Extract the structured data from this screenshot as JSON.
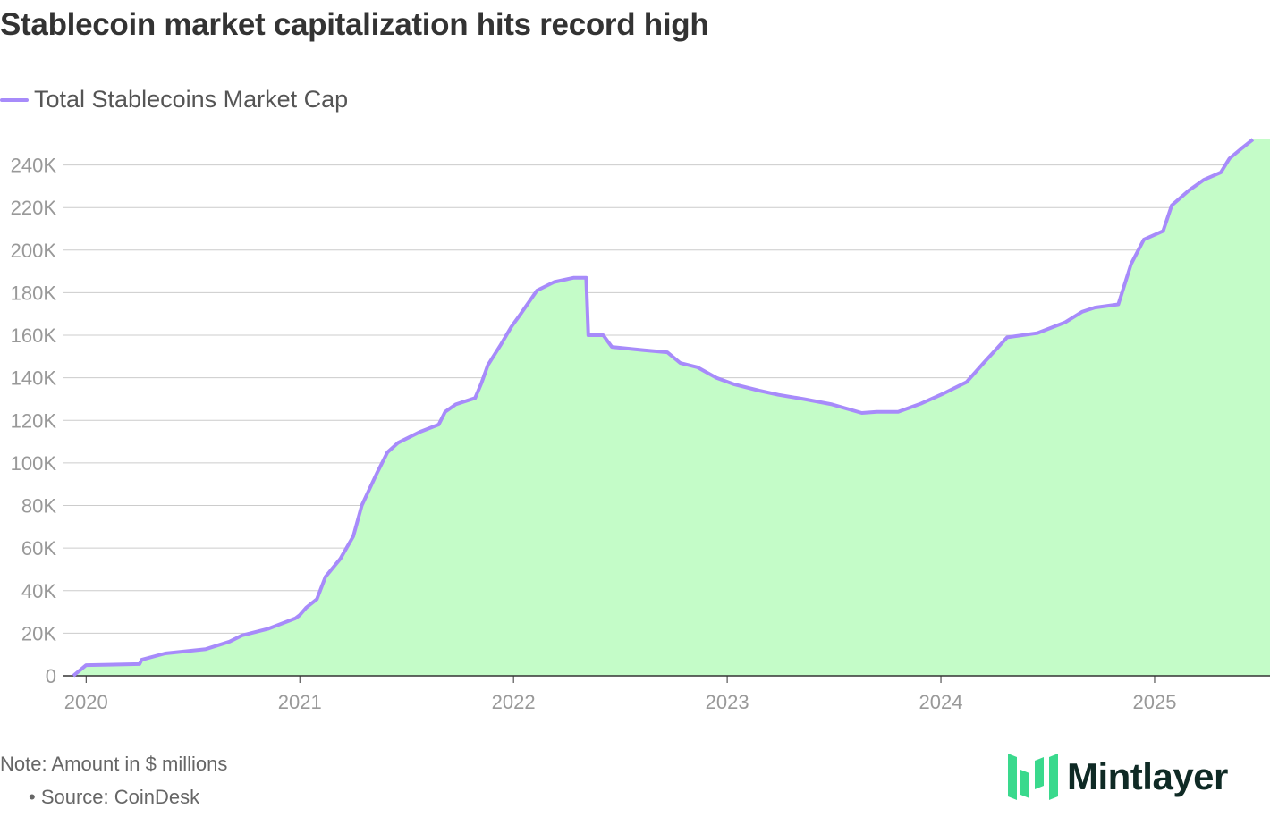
{
  "chart_data": {
    "type": "area",
    "title": "Stablecoin market capitalization hits record high",
    "legend": [
      "Total Stablecoins Market Cap"
    ],
    "legend_position": "top-left",
    "xlabel": "",
    "ylabel": "",
    "xlim": [
      2019.89,
      2025.54
    ],
    "ylim": [
      0,
      252
    ],
    "x_ticks": [
      "2020",
      "2021",
      "2022",
      "2023",
      "2024",
      "2025"
    ],
    "x_tick_values": [
      2020,
      2021,
      2022,
      2023,
      2024,
      2025
    ],
    "y_ticks": [
      "0",
      "20K",
      "40K",
      "60K",
      "80K",
      "100K",
      "120K",
      "140K",
      "160K",
      "180K",
      "200K",
      "220K",
      "240K"
    ],
    "y_tick_values": [
      0,
      20,
      40,
      60,
      80,
      100,
      120,
      140,
      160,
      180,
      200,
      220,
      240
    ],
    "grid": true,
    "series": [
      {
        "name": "Total Stablecoins Market Cap",
        "unit": "$ millions (thousands shown as K)",
        "x": [
          2019.94,
          2020.0,
          2020.25,
          2020.26,
          2020.37,
          2020.56,
          2020.67,
          2020.73,
          2020.85,
          2020.98,
          2021.0,
          2021.03,
          2021.08,
          2021.12,
          2021.19,
          2021.25,
          2021.29,
          2021.36,
          2021.41,
          2021.46,
          2021.56,
          2021.65,
          2021.68,
          2021.73,
          2021.82,
          2021.85,
          2021.88,
          2021.94,
          2021.99,
          2022.03,
          2022.11,
          2022.19,
          2022.28,
          2022.34,
          2022.35,
          2022.42,
          2022.46,
          2022.61,
          2022.72,
          2022.78,
          2022.86,
          2022.95,
          2023.03,
          2023.15,
          2023.24,
          2023.36,
          2023.49,
          2023.63,
          2023.7,
          2023.8,
          2023.91,
          2024.01,
          2024.12,
          2024.2,
          2024.31,
          2024.45,
          2024.58,
          2024.66,
          2024.72,
          2024.83,
          2024.89,
          2024.95,
          2025.04,
          2025.08,
          2025.16,
          2025.23,
          2025.31,
          2025.35,
          2025.41,
          2025.46
        ],
        "y": [
          0,
          5,
          5.5,
          7.5,
          10.5,
          12.5,
          16,
          19,
          22,
          27,
          28.5,
          32,
          36,
          46.5,
          55,
          65.5,
          80,
          95,
          105,
          109.5,
          114.5,
          118,
          124,
          127.5,
          130.5,
          137.5,
          146,
          155.5,
          164,
          169.5,
          181,
          185,
          187,
          187,
          160,
          160,
          154.5,
          153,
          152,
          147,
          145,
          140,
          137,
          134,
          132,
          130,
          127.5,
          123.5,
          124,
          124,
          128,
          132.5,
          138,
          147,
          159,
          161,
          166,
          171,
          173,
          174.5,
          193.5,
          205,
          209,
          221,
          228,
          233,
          236.5,
          243,
          248,
          252
        ]
      }
    ],
    "colors": {
      "line": "#a78bfa",
      "fill": "#c4fcc8"
    }
  },
  "footer": {
    "note": "Note: Amount in $ millions",
    "source": "• Source: CoinDesk",
    "logo_text": "Mintlayer"
  }
}
